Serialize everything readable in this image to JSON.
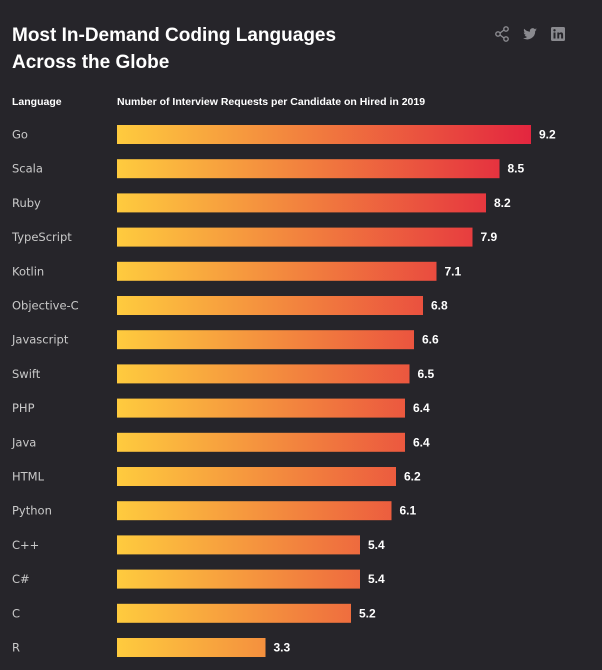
{
  "header": {
    "title_line1": "Most In-Demand Coding Languages",
    "title_line2": "Across the Globe"
  },
  "share_icons": [
    "share-icon",
    "twitter-icon",
    "linkedin-icon"
  ],
  "colors": {
    "background": "#26252a",
    "bar_start": "#fecb3e",
    "bar_end": "#e3263f"
  },
  "chart_data": {
    "type": "bar",
    "orientation": "horizontal",
    "title": "Most In-Demand Coding Languages Across the Globe",
    "category_header": "Language",
    "value_header": "Number of Interview Requests per Candidate on Hired in 2019",
    "categories": [
      "Go",
      "Scala",
      "Ruby",
      "TypeScript",
      "Kotlin",
      "Objective-C",
      "Javascript",
      "Swift",
      "PHP",
      "Java",
      "HTML",
      "Python",
      "C++",
      "C#",
      "C",
      "R"
    ],
    "values": [
      9.2,
      8.5,
      8.2,
      7.9,
      7.1,
      6.8,
      6.6,
      6.5,
      6.4,
      6.4,
      6.2,
      6.1,
      5.4,
      5.4,
      5.2,
      3.3
    ],
    "labels": [
      "9.2",
      "8.5",
      "8.2",
      "7.9",
      "7.1",
      "6.8",
      "6.6",
      "6.5",
      "6.4",
      "6.4",
      "6.2",
      "6.1",
      "5.4",
      "5.4",
      "5.2",
      "3.3"
    ],
    "xlim": [
      0,
      9.2
    ],
    "grid": false,
    "legend": "none"
  }
}
